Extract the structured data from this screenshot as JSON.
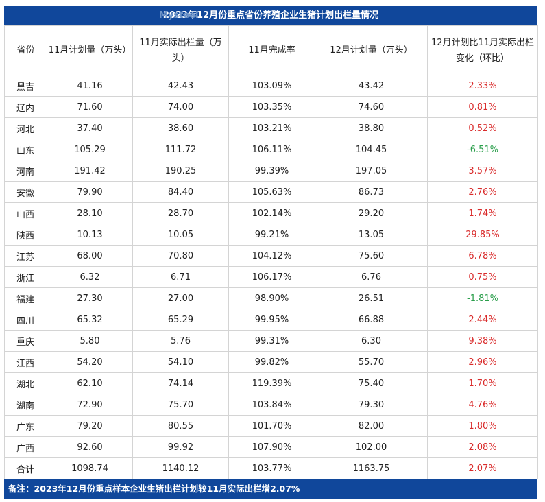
{
  "title": {
    "watermark": "Mysteel",
    "text": "2023年12月份重点省份养殖企业生猪计划出栏量情况"
  },
  "chart_data": {
    "type": "table",
    "columns": [
      "省份",
      "11月计划量（万头）",
      "11月实际出栏量（万头）",
      "11月完成率",
      "12月计划量（万头）",
      "12月计划比11月实际出栏变化（环比）"
    ],
    "rows": [
      [
        "黑吉",
        "41.16",
        "42.43",
        "103.09%",
        "43.42",
        "2.33%"
      ],
      [
        "辽内",
        "71.60",
        "74.00",
        "103.35%",
        "74.60",
        "0.81%"
      ],
      [
        "河北",
        "37.40",
        "38.60",
        "103.21%",
        "38.80",
        "0.52%"
      ],
      [
        "山东",
        "105.29",
        "111.72",
        "106.11%",
        "104.45",
        "-6.51%"
      ],
      [
        "河南",
        "191.42",
        "190.25",
        "99.39%",
        "197.05",
        "3.57%"
      ],
      [
        "安徽",
        "79.90",
        "84.40",
        "105.63%",
        "86.73",
        "2.76%"
      ],
      [
        "山西",
        "28.10",
        "28.70",
        "102.14%",
        "29.20",
        "1.74%"
      ],
      [
        "陕西",
        "10.13",
        "10.05",
        "99.21%",
        "13.05",
        "29.85%"
      ],
      [
        "江苏",
        "68.00",
        "70.80",
        "104.12%",
        "75.60",
        "6.78%"
      ],
      [
        "浙江",
        "6.32",
        "6.71",
        "106.17%",
        "6.76",
        "0.75%"
      ],
      [
        "福建",
        "27.30",
        "27.00",
        "98.90%",
        "26.51",
        "-1.81%"
      ],
      [
        "四川",
        "65.32",
        "65.29",
        "99.95%",
        "66.88",
        "2.44%"
      ],
      [
        "重庆",
        "5.80",
        "5.76",
        "99.31%",
        "6.30",
        "9.38%"
      ],
      [
        "江西",
        "54.20",
        "54.10",
        "99.82%",
        "55.70",
        "2.96%"
      ],
      [
        "湖北",
        "62.10",
        "74.14",
        "119.39%",
        "75.40",
        "1.70%"
      ],
      [
        "湖南",
        "72.90",
        "75.70",
        "103.84%",
        "79.30",
        "4.76%"
      ],
      [
        "广东",
        "79.20",
        "80.55",
        "101.70%",
        "82.00",
        "1.80%"
      ],
      [
        "广西",
        "92.60",
        "99.92",
        "107.90%",
        "102.00",
        "2.08%"
      ],
      [
        "合计",
        "1098.74",
        "1140.12",
        "103.77%",
        "1163.75",
        "2.07%"
      ]
    ]
  },
  "colors": {
    "header_bg": "#10479b",
    "positive": "#d92b2b",
    "negative": "#2a9e4b"
  },
  "note": "备注：2023年12月份重点样本企业生猪出栏计划较11月实际出栏增2.07%"
}
